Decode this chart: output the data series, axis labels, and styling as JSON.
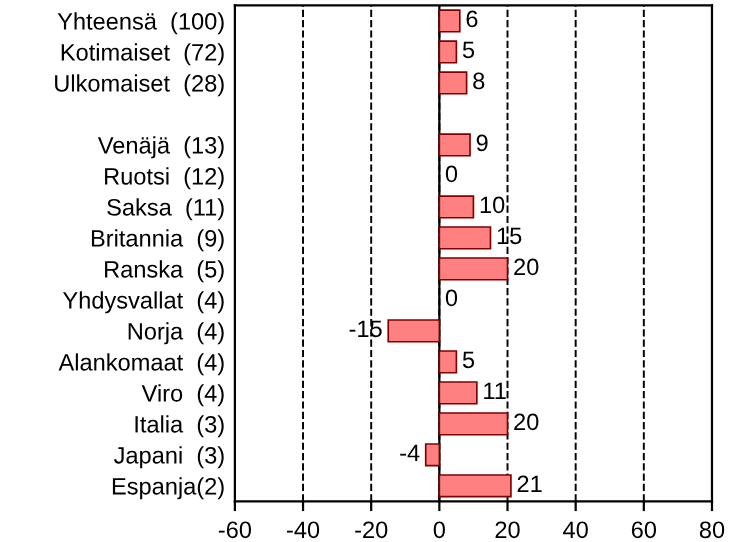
{
  "chart_data": {
    "type": "bar",
    "orientation": "horizontal",
    "categories": [
      "Yhteensä  (100)",
      "Kotimaiset  (72)",
      "Ulkomaiset  (28)",
      null,
      "Venäjä  (13)",
      "Ruotsi  (12)",
      "Saksa  (11)",
      "Britannia  (9)",
      "Ranska  (5)",
      "Yhdysvallat  (4)",
      "Norja  (4)",
      "Alankomaat  (4)",
      "Viro  (4)",
      "Italia  (3)",
      "Japani  (3)",
      "Espanja(2)"
    ],
    "values": [
      6,
      5,
      8,
      null,
      9,
      0,
      10,
      15,
      20,
      0,
      -15,
      5,
      11,
      20,
      -4,
      21
    ],
    "color": "#ff8080",
    "xlim": [
      -60,
      80
    ],
    "xticks": [
      -60,
      -40,
      -20,
      0,
      20,
      40,
      60,
      80
    ],
    "grid": "x",
    "data_labels": true
  }
}
